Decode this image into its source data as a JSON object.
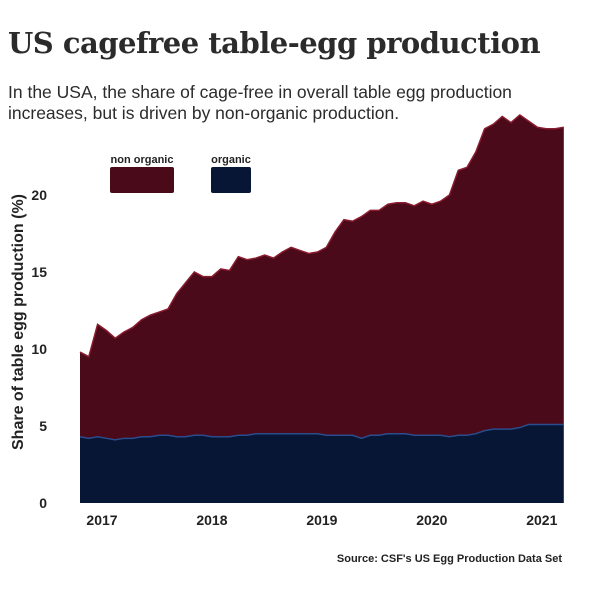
{
  "title": "US cagefree table-egg production",
  "subtitle": "In the USA, the share of cage-free in overall table egg production increases, but is driven by non-organic production.",
  "source": "Source: CSF's US Egg Production Data Set",
  "colors": {
    "non_organic": "#4a0a19",
    "organic": "#061634",
    "organic_line": "#2a4c8c",
    "non_organic_line": "#8a1c30"
  },
  "chart_data": {
    "type": "area",
    "stacked": true,
    "ylabel": "Share of table egg production (%)",
    "xlabel": "",
    "xlim": [
      2016.8,
      2021.22
    ],
    "ylim": [
      0,
      25
    ],
    "y_ticks": [
      0,
      5,
      10,
      15,
      20
    ],
    "x_ticks": [
      2017,
      2018,
      2019,
      2020,
      2021
    ],
    "legend_placement": "top-left",
    "x": [
      2016.8,
      2016.88,
      2016.96,
      2017.04,
      2017.12,
      2017.2,
      2017.28,
      2017.36,
      2017.44,
      2017.52,
      2017.6,
      2017.68,
      2017.76,
      2017.84,
      2017.92,
      2018.0,
      2018.08,
      2018.16,
      2018.24,
      2018.32,
      2018.4,
      2018.48,
      2018.56,
      2018.64,
      2018.72,
      2018.8,
      2018.88,
      2018.96,
      2019.04,
      2019.12,
      2019.2,
      2019.28,
      2019.36,
      2019.44,
      2019.52,
      2019.6,
      2019.68,
      2019.76,
      2019.84,
      2019.92,
      2020.0,
      2020.08,
      2020.16,
      2020.24,
      2020.32,
      2020.4,
      2020.48,
      2020.56,
      2020.64,
      2020.72,
      2020.8,
      2020.88,
      2020.96,
      2021.04,
      2021.12,
      2021.2
    ],
    "series": [
      {
        "name": "non organic",
        "values": [
          5.5,
          5.3,
          7.3,
          7.0,
          6.6,
          6.9,
          7.2,
          7.6,
          7.9,
          8.0,
          8.2,
          9.3,
          10.0,
          10.6,
          10.3,
          10.4,
          10.9,
          10.8,
          11.6,
          11.4,
          11.4,
          11.6,
          11.4,
          11.8,
          12.1,
          11.9,
          11.7,
          11.8,
          12.2,
          13.2,
          14.0,
          13.9,
          14.4,
          14.6,
          14.6,
          14.9,
          15.0,
          15.0,
          14.9,
          15.2,
          15.0,
          15.2,
          15.7,
          17.2,
          17.4,
          18.3,
          19.6,
          19.8,
          20.3,
          19.9,
          20.3,
          19.7,
          19.3,
          19.2,
          19.2,
          19.3
        ],
        "values_note": "stacked on top of organic"
      },
      {
        "name": "organic",
        "values": [
          4.3,
          4.2,
          4.3,
          4.2,
          4.1,
          4.2,
          4.2,
          4.3,
          4.3,
          4.4,
          4.4,
          4.3,
          4.3,
          4.4,
          4.4,
          4.3,
          4.3,
          4.3,
          4.4,
          4.4,
          4.5,
          4.5,
          4.5,
          4.5,
          4.5,
          4.5,
          4.5,
          4.5,
          4.4,
          4.4,
          4.4,
          4.4,
          4.2,
          4.4,
          4.4,
          4.5,
          4.5,
          4.5,
          4.4,
          4.4,
          4.4,
          4.4,
          4.3,
          4.4,
          4.4,
          4.5,
          4.7,
          4.8,
          4.8,
          4.8,
          4.9,
          5.1,
          5.1,
          5.1,
          5.1,
          5.1
        ]
      }
    ]
  }
}
